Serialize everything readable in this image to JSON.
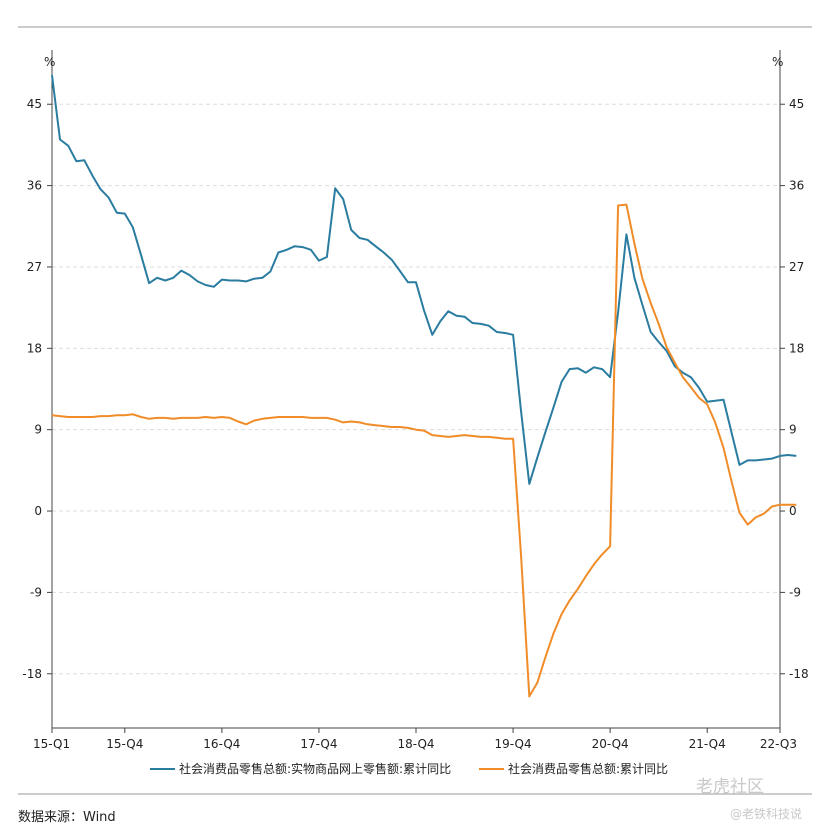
{
  "chart_data": {
    "type": "line",
    "y_unit_left": "%",
    "y_unit_right": "%",
    "yticks": [
      -18,
      -9,
      0,
      9,
      18,
      27,
      36,
      45
    ],
    "ylim": [
      -24,
      51
    ],
    "xlim": [
      0,
      29
    ],
    "xticks": [
      {
        "x": 0,
        "label": "15-Q1"
      },
      {
        "x": 3,
        "label": "15-Q4"
      },
      {
        "x": 7,
        "label": "16-Q4"
      },
      {
        "x": 11,
        "label": "17-Q4"
      },
      {
        "x": 15,
        "label": "18-Q4"
      },
      {
        "x": 19,
        "label": "19-Q4"
      },
      {
        "x": 23,
        "label": "20-Q4"
      },
      {
        "x": 27,
        "label": "21-Q4"
      },
      {
        "x": 30,
        "label": "22-Q3"
      }
    ],
    "grid": true,
    "legend_position": "bottom",
    "series": [
      {
        "name": "社会消费品零售总额:实物商品网上零售额:累计同比",
        "color": "#2a7ca0",
        "points": [
          [
            0.0,
            48.2
          ],
          [
            0.33,
            41.1
          ],
          [
            0.67,
            40.4
          ],
          [
            1.0,
            38.7
          ],
          [
            1.33,
            38.8
          ],
          [
            1.67,
            37.1
          ],
          [
            2.0,
            35.6
          ],
          [
            2.33,
            34.7
          ],
          [
            2.67,
            33.0
          ],
          [
            3.0,
            32.9
          ],
          [
            3.33,
            31.4
          ],
          [
            3.67,
            28.3
          ],
          [
            4.0,
            25.2
          ],
          [
            4.33,
            25.8
          ],
          [
            4.67,
            25.5
          ],
          [
            5.0,
            25.8
          ],
          [
            5.33,
            26.6
          ],
          [
            5.67,
            26.1
          ],
          [
            6.0,
            25.4
          ],
          [
            6.33,
            25.0
          ],
          [
            6.67,
            24.8
          ],
          [
            7.0,
            25.6
          ],
          [
            7.33,
            25.5
          ],
          [
            7.67,
            25.5
          ],
          [
            8.0,
            25.4
          ],
          [
            8.33,
            25.7
          ],
          [
            8.67,
            25.8
          ],
          [
            9.0,
            26.5
          ],
          [
            9.33,
            28.6
          ],
          [
            9.67,
            28.9
          ],
          [
            10.0,
            29.3
          ],
          [
            10.33,
            29.2
          ],
          [
            10.67,
            28.9
          ],
          [
            11.0,
            27.7
          ],
          [
            11.33,
            28.1
          ],
          [
            11.67,
            35.7
          ],
          [
            12.0,
            34.5
          ],
          [
            12.33,
            31.1
          ],
          [
            12.67,
            30.2
          ],
          [
            13.0,
            30.0
          ],
          [
            13.33,
            29.3
          ],
          [
            13.67,
            28.6
          ],
          [
            14.0,
            27.8
          ],
          [
            14.33,
            26.6
          ],
          [
            14.67,
            25.3
          ],
          [
            15.0,
            25.3
          ],
          [
            15.33,
            22.2
          ],
          [
            15.67,
            19.5
          ],
          [
            16.0,
            21.0
          ],
          [
            16.33,
            22.1
          ],
          [
            16.67,
            21.6
          ],
          [
            17.0,
            21.5
          ],
          [
            17.33,
            20.8
          ],
          [
            17.67,
            20.7
          ],
          [
            18.0,
            20.5
          ],
          [
            18.33,
            19.8
          ],
          [
            18.67,
            19.7
          ],
          [
            19.0,
            19.5
          ],
          [
            19.33,
            11.0
          ],
          [
            19.67,
            3.0
          ],
          [
            20.0,
            5.9
          ],
          [
            20.33,
            8.7
          ],
          [
            20.67,
            11.5
          ],
          [
            21.0,
            14.3
          ],
          [
            21.33,
            15.7
          ],
          [
            21.67,
            15.8
          ],
          [
            22.0,
            15.3
          ],
          [
            22.33,
            15.9
          ],
          [
            22.67,
            15.7
          ],
          [
            23.0,
            14.8
          ],
          [
            23.33,
            22.0
          ],
          [
            23.67,
            30.6
          ],
          [
            24.0,
            25.8
          ],
          [
            24.33,
            22.8
          ],
          [
            24.67,
            19.8
          ],
          [
            25.0,
            18.7
          ],
          [
            25.33,
            17.7
          ],
          [
            25.67,
            16.0
          ],
          [
            26.0,
            15.3
          ],
          [
            26.33,
            14.8
          ],
          [
            26.67,
            13.6
          ],
          [
            27.0,
            12.1
          ],
          [
            27.33,
            12.2
          ],
          [
            27.67,
            12.3
          ],
          [
            28.0,
            8.7
          ],
          [
            28.33,
            5.1
          ],
          [
            28.67,
            5.6
          ],
          [
            29.0,
            5.6
          ],
          [
            29.33,
            5.7
          ],
          [
            29.67,
            5.8
          ],
          [
            30.0,
            6.1
          ],
          [
            30.33,
            6.2
          ],
          [
            30.67,
            6.1
          ]
        ]
      },
      {
        "name": "社会消费品零售总额:累计同比",
        "color": "#f08c28",
        "points": [
          [
            0.0,
            10.6
          ],
          [
            0.33,
            10.5
          ],
          [
            0.67,
            10.4
          ],
          [
            1.0,
            10.4
          ],
          [
            1.33,
            10.4
          ],
          [
            1.67,
            10.4
          ],
          [
            2.0,
            10.5
          ],
          [
            2.33,
            10.5
          ],
          [
            2.67,
            10.6
          ],
          [
            3.0,
            10.6
          ],
          [
            3.33,
            10.7
          ],
          [
            3.67,
            10.4
          ],
          [
            4.0,
            10.2
          ],
          [
            4.33,
            10.3
          ],
          [
            4.67,
            10.3
          ],
          [
            5.0,
            10.2
          ],
          [
            5.33,
            10.3
          ],
          [
            5.67,
            10.3
          ],
          [
            6.0,
            10.3
          ],
          [
            6.33,
            10.4
          ],
          [
            6.67,
            10.3
          ],
          [
            7.0,
            10.4
          ],
          [
            7.33,
            10.3
          ],
          [
            7.67,
            9.9
          ],
          [
            8.0,
            9.6
          ],
          [
            8.33,
            10.0
          ],
          [
            8.67,
            10.2
          ],
          [
            9.0,
            10.3
          ],
          [
            9.33,
            10.4
          ],
          [
            9.67,
            10.4
          ],
          [
            10.0,
            10.4
          ],
          [
            10.33,
            10.4
          ],
          [
            10.67,
            10.3
          ],
          [
            11.0,
            10.3
          ],
          [
            11.33,
            10.3
          ],
          [
            11.67,
            10.1
          ],
          [
            12.0,
            9.8
          ],
          [
            12.33,
            9.9
          ],
          [
            12.67,
            9.8
          ],
          [
            13.0,
            9.6
          ],
          [
            13.33,
            9.5
          ],
          [
            13.67,
            9.4
          ],
          [
            14.0,
            9.3
          ],
          [
            14.33,
            9.3
          ],
          [
            14.67,
            9.2
          ],
          [
            15.0,
            9.0
          ],
          [
            15.33,
            8.9
          ],
          [
            15.67,
            8.4
          ],
          [
            16.0,
            8.3
          ],
          [
            16.33,
            8.2
          ],
          [
            16.67,
            8.3
          ],
          [
            17.0,
            8.4
          ],
          [
            17.33,
            8.3
          ],
          [
            17.67,
            8.2
          ],
          [
            18.0,
            8.2
          ],
          [
            18.33,
            8.1
          ],
          [
            18.67,
            8.0
          ],
          [
            19.0,
            8.0
          ],
          [
            19.33,
            -5.0
          ],
          [
            19.67,
            -20.5
          ],
          [
            20.0,
            -19.0
          ],
          [
            20.33,
            -16.2
          ],
          [
            20.67,
            -13.5
          ],
          [
            21.0,
            -11.4
          ],
          [
            21.33,
            -9.9
          ],
          [
            21.67,
            -8.6
          ],
          [
            22.0,
            -7.2
          ],
          [
            22.33,
            -5.9
          ],
          [
            22.67,
            -4.8
          ],
          [
            23.0,
            -3.9
          ],
          [
            23.33,
            33.8
          ],
          [
            23.67,
            33.9
          ],
          [
            24.0,
            29.6
          ],
          [
            24.33,
            25.7
          ],
          [
            24.67,
            23.0
          ],
          [
            25.0,
            20.7
          ],
          [
            25.33,
            18.1
          ],
          [
            25.67,
            16.4
          ],
          [
            26.0,
            14.8
          ],
          [
            26.33,
            13.7
          ],
          [
            26.67,
            12.5
          ],
          [
            27.0,
            11.8
          ],
          [
            27.33,
            9.8
          ],
          [
            27.67,
            7.0
          ],
          [
            28.0,
            3.3
          ],
          [
            28.33,
            -0.2
          ],
          [
            28.67,
            -1.5
          ],
          [
            29.0,
            -0.7
          ],
          [
            29.33,
            -0.3
          ],
          [
            29.67,
            0.5
          ],
          [
            30.0,
            0.7
          ],
          [
            30.33,
            0.7
          ],
          [
            30.67,
            0.7
          ]
        ]
      }
    ]
  },
  "source_label": "数据来源：Wind",
  "watermark": {
    "line1": "老虎社区",
    "line2": "@老铁科技说"
  }
}
